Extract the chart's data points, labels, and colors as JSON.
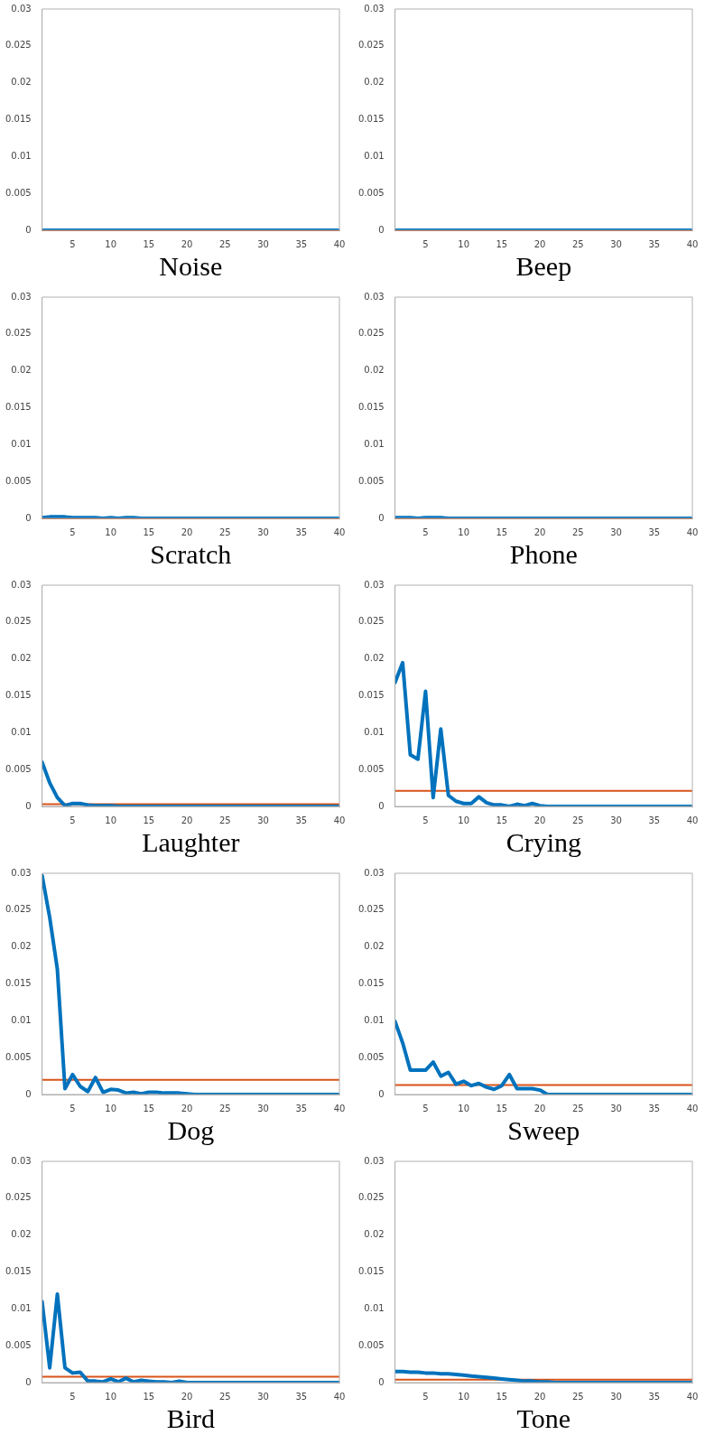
{
  "chart_data": [
    {
      "type": "line",
      "xlabel": "Noise",
      "x": [
        1,
        2,
        3,
        4,
        5,
        6,
        7,
        8,
        9,
        10,
        11,
        12,
        13,
        14,
        15,
        16,
        17,
        18,
        19,
        20,
        21,
        22,
        23,
        24,
        25,
        26,
        27,
        28,
        29,
        30,
        31,
        32,
        33,
        34,
        35,
        36,
        37,
        38,
        39,
        40
      ],
      "xlim": [
        1,
        40
      ],
      "xticks": [
        5,
        10,
        15,
        20,
        25,
        30,
        35,
        40
      ],
      "ylim": [
        0,
        0.03
      ],
      "yticks": [
        0,
        0.005,
        0.01,
        0.015,
        0.02,
        0.025,
        0.03
      ],
      "legend": false,
      "marker": "none",
      "line_style": "solid",
      "series": [
        {
          "color": "#0072bd",
          "values": [
            0,
            0,
            0,
            0,
            0,
            0,
            0,
            0,
            0,
            0,
            0,
            0,
            0,
            0,
            0,
            0,
            0,
            0,
            0,
            0,
            0,
            0,
            0,
            0,
            0,
            0,
            0,
            0,
            0,
            0,
            0,
            0,
            0,
            0,
            0,
            0,
            0,
            0,
            0,
            0
          ]
        }
      ],
      "ref_lines": [
        {
          "axis": "y",
          "value": 0,
          "color": "#d95319"
        }
      ]
    },
    {
      "type": "line",
      "xlabel": "Beep",
      "x": [
        1,
        2,
        3,
        4,
        5,
        6,
        7,
        8,
        9,
        10,
        11,
        12,
        13,
        14,
        15,
        16,
        17,
        18,
        19,
        20,
        21,
        22,
        23,
        24,
        25,
        26,
        27,
        28,
        29,
        30,
        31,
        32,
        33,
        34,
        35,
        36,
        37,
        38,
        39,
        40
      ],
      "xlim": [
        1,
        40
      ],
      "xticks": [
        5,
        10,
        15,
        20,
        25,
        30,
        35,
        40
      ],
      "ylim": [
        0,
        0.03
      ],
      "yticks": [
        0,
        0.005,
        0.01,
        0.015,
        0.02,
        0.025,
        0.03
      ],
      "legend": false,
      "marker": "none",
      "line_style": "solid",
      "series": [
        {
          "color": "#0072bd",
          "values": [
            0,
            0,
            0,
            0,
            0,
            0,
            0,
            0,
            0,
            0,
            0,
            0,
            0,
            0,
            0,
            0,
            0,
            0,
            0,
            0,
            0,
            0,
            0,
            0,
            0,
            0,
            0,
            0,
            0,
            0,
            0,
            0,
            0,
            0,
            0,
            0,
            0,
            0,
            0,
            0
          ]
        }
      ],
      "ref_lines": [
        {
          "axis": "y",
          "value": 0,
          "color": "#d95319"
        }
      ]
    },
    {
      "type": "line",
      "xlabel": "Scratch",
      "x": [
        1,
        2,
        3,
        4,
        5,
        6,
        7,
        8,
        9,
        10,
        11,
        12,
        13,
        14,
        15,
        16,
        17,
        18,
        19,
        20,
        21,
        22,
        23,
        24,
        25,
        26,
        27,
        28,
        29,
        30,
        31,
        32,
        33,
        34,
        35,
        36,
        37,
        38,
        39,
        40
      ],
      "xlim": [
        1,
        40
      ],
      "xticks": [
        5,
        10,
        15,
        20,
        25,
        30,
        35,
        40
      ],
      "ylim": [
        0,
        0.03
      ],
      "yticks": [
        0,
        0.005,
        0.01,
        0.015,
        0.02,
        0.025,
        0.03
      ],
      "legend": false,
      "marker": "none",
      "line_style": "solid",
      "series": [
        {
          "color": "#0072bd",
          "values": [
            0.0001,
            0.0002,
            0.0002,
            0.0002,
            0.0001,
            0.0001,
            0.0001,
            0.0001,
            0,
            0.0001,
            0,
            0.0001,
            0.0001,
            0,
            0,
            0,
            0,
            0,
            0,
            0,
            0,
            0,
            0,
            0,
            0,
            0,
            0,
            0,
            0,
            0,
            0,
            0,
            0,
            0,
            0,
            0,
            0,
            0,
            0,
            0
          ]
        }
      ],
      "ref_lines": [
        {
          "axis": "y",
          "value": 0,
          "color": "#d95319"
        }
      ]
    },
    {
      "type": "line",
      "xlabel": "Phone",
      "x": [
        1,
        2,
        3,
        4,
        5,
        6,
        7,
        8,
        9,
        10,
        11,
        12,
        13,
        14,
        15,
        16,
        17,
        18,
        19,
        20,
        21,
        22,
        23,
        24,
        25,
        26,
        27,
        28,
        29,
        30,
        31,
        32,
        33,
        34,
        35,
        36,
        37,
        38,
        39,
        40
      ],
      "xlim": [
        1,
        40
      ],
      "xticks": [
        5,
        10,
        15,
        20,
        25,
        30,
        35,
        40
      ],
      "ylim": [
        0,
        0.03
      ],
      "yticks": [
        0,
        0.005,
        0.01,
        0.015,
        0.02,
        0.025,
        0.03
      ],
      "legend": false,
      "marker": "none",
      "line_style": "solid",
      "series": [
        {
          "color": "#0072bd",
          "values": [
            0.0001,
            0.0001,
            0.0001,
            0,
            0.0001,
            0.0001,
            0.0001,
            0,
            0,
            0,
            0,
            0,
            0,
            0,
            0,
            0,
            0,
            0,
            0,
            0,
            0,
            0,
            0,
            0,
            0,
            0,
            0,
            0,
            0,
            0,
            0,
            0,
            0,
            0,
            0,
            0,
            0,
            0,
            0,
            0
          ]
        }
      ],
      "ref_lines": [
        {
          "axis": "y",
          "value": 0,
          "color": "#d95319"
        }
      ]
    },
    {
      "type": "line",
      "xlabel": "Laughter",
      "x": [
        1,
        2,
        3,
        4,
        5,
        6,
        7,
        8,
        9,
        10,
        11,
        12,
        13,
        14,
        15,
        16,
        17,
        18,
        19,
        20,
        21,
        22,
        23,
        24,
        25,
        26,
        27,
        28,
        29,
        30,
        31,
        32,
        33,
        34,
        35,
        36,
        37,
        38,
        39,
        40
      ],
      "xlim": [
        1,
        40
      ],
      "xticks": [
        5,
        10,
        15,
        20,
        25,
        30,
        35,
        40
      ],
      "ylim": [
        0,
        0.03
      ],
      "yticks": [
        0,
        0.005,
        0.01,
        0.015,
        0.02,
        0.025,
        0.03
      ],
      "legend": false,
      "marker": "none",
      "line_style": "solid",
      "series": [
        {
          "color": "#0072bd",
          "values": [
            0.006,
            0.0032,
            0.0012,
            0.0001,
            0.0004,
            0.0004,
            0.0002,
            0.0001,
            0.0001,
            0.0001,
            0,
            0,
            0,
            0,
            0,
            0,
            0,
            0,
            0,
            0,
            0,
            0,
            0,
            0,
            0,
            0,
            0,
            0,
            0,
            0,
            0,
            0,
            0,
            0,
            0,
            0,
            0,
            0,
            0,
            0
          ]
        }
      ],
      "ref_lines": [
        {
          "axis": "y",
          "value": 0.0003,
          "color": "#d95319"
        }
      ]
    },
    {
      "type": "line",
      "xlabel": "Crying",
      "x": [
        1,
        2,
        3,
        4,
        5,
        6,
        7,
        8,
        9,
        10,
        11,
        12,
        13,
        14,
        15,
        16,
        17,
        18,
        19,
        20,
        21,
        22,
        23,
        24,
        25,
        26,
        27,
        28,
        29,
        30,
        31,
        32,
        33,
        34,
        35,
        36,
        37,
        38,
        39,
        40
      ],
      "xlim": [
        1,
        40
      ],
      "xticks": [
        5,
        10,
        15,
        20,
        25,
        30,
        35,
        40
      ],
      "ylim": [
        0,
        0.03
      ],
      "yticks": [
        0,
        0.005,
        0.01,
        0.015,
        0.02,
        0.025,
        0.03
      ],
      "legend": false,
      "marker": "none",
      "line_style": "solid",
      "series": [
        {
          "color": "#0072bd",
          "values": [
            0.0168,
            0.0195,
            0.007,
            0.0064,
            0.0156,
            0.0012,
            0.0105,
            0.0015,
            0.0007,
            0.0004,
            0.0004,
            0.0013,
            0.0005,
            0.0002,
            0.0002,
            0,
            0.0003,
            0.0001,
            0.0004,
            0.0001,
            0,
            0,
            0,
            0,
            0,
            0,
            0,
            0,
            0,
            0,
            0,
            0,
            0,
            0,
            0,
            0,
            0,
            0,
            0,
            0
          ]
        }
      ],
      "ref_lines": [
        {
          "axis": "y",
          "value": 0.0021,
          "color": "#d95319"
        }
      ]
    },
    {
      "type": "line",
      "xlabel": "Dog",
      "x": [
        1,
        2,
        3,
        4,
        5,
        6,
        7,
        8,
        9,
        10,
        11,
        12,
        13,
        14,
        15,
        16,
        17,
        18,
        19,
        20,
        21,
        22,
        23,
        24,
        25,
        26,
        27,
        28,
        29,
        30,
        31,
        32,
        33,
        34,
        35,
        36,
        37,
        38,
        39,
        40
      ],
      "xlim": [
        1,
        40
      ],
      "xticks": [
        5,
        10,
        15,
        20,
        25,
        30,
        35,
        40
      ],
      "ylim": [
        0,
        0.03
      ],
      "yticks": [
        0,
        0.005,
        0.01,
        0.015,
        0.02,
        0.025,
        0.03
      ],
      "legend": false,
      "marker": "none",
      "line_style": "solid",
      "series": [
        {
          "color": "#0072bd",
          "values": [
            0.0297,
            0.024,
            0.017,
            0.0008,
            0.0027,
            0.0011,
            0.0004,
            0.0023,
            0.0003,
            0.0007,
            0.0006,
            0.0002,
            0.0003,
            0.0001,
            0.0003,
            0.0003,
            0.0002,
            0.0002,
            0.0002,
            0.0001,
            0,
            0,
            0,
            0,
            0,
            0,
            0,
            0,
            0,
            0,
            0,
            0,
            0,
            0,
            0,
            0,
            0,
            0,
            0,
            0
          ]
        }
      ],
      "ref_lines": [
        {
          "axis": "y",
          "value": 0.002,
          "color": "#d95319"
        }
      ]
    },
    {
      "type": "line",
      "xlabel": "Sweep",
      "x": [
        1,
        2,
        3,
        4,
        5,
        6,
        7,
        8,
        9,
        10,
        11,
        12,
        13,
        14,
        15,
        16,
        17,
        18,
        19,
        20,
        21,
        22,
        23,
        24,
        25,
        26,
        27,
        28,
        29,
        30,
        31,
        32,
        33,
        34,
        35,
        36,
        37,
        38,
        39,
        40
      ],
      "xlim": [
        1,
        40
      ],
      "xticks": [
        5,
        10,
        15,
        20,
        25,
        30,
        35,
        40
      ],
      "ylim": [
        0,
        0.03
      ],
      "yticks": [
        0,
        0.005,
        0.01,
        0.015,
        0.02,
        0.025,
        0.03
      ],
      "legend": false,
      "marker": "none",
      "line_style": "solid",
      "series": [
        {
          "color": "#0072bd",
          "values": [
            0.0099,
            0.007,
            0.0033,
            0.0033,
            0.0033,
            0.0044,
            0.0025,
            0.003,
            0.0014,
            0.0018,
            0.0012,
            0.0015,
            0.001,
            0.0007,
            0.0012,
            0.0027,
            0.0008,
            0.0008,
            0.0008,
            0.0006,
            0,
            0,
            0,
            0,
            0,
            0,
            0,
            0,
            0,
            0,
            0,
            0,
            0,
            0,
            0,
            0,
            0,
            0,
            0,
            0
          ]
        }
      ],
      "ref_lines": [
        {
          "axis": "y",
          "value": 0.0013,
          "color": "#d95319"
        }
      ]
    },
    {
      "type": "line",
      "xlabel": "Bird",
      "x": [
        1,
        2,
        3,
        4,
        5,
        6,
        7,
        8,
        9,
        10,
        11,
        12,
        13,
        14,
        15,
        16,
        17,
        18,
        19,
        20,
        21,
        22,
        23,
        24,
        25,
        26,
        27,
        28,
        29,
        30,
        31,
        32,
        33,
        34,
        35,
        36,
        37,
        38,
        39,
        40
      ],
      "xlim": [
        1,
        40
      ],
      "xticks": [
        5,
        10,
        15,
        20,
        25,
        30,
        35,
        40
      ],
      "ylim": [
        0,
        0.03
      ],
      "yticks": [
        0,
        0.005,
        0.01,
        0.015,
        0.02,
        0.025,
        0.03
      ],
      "legend": false,
      "marker": "none",
      "line_style": "solid",
      "series": [
        {
          "color": "#0072bd",
          "values": [
            0.011,
            0.002,
            0.012,
            0.002,
            0.0013,
            0.0014,
            0.0002,
            0.0002,
            0.0001,
            0.0005,
            0.0001,
            0.0006,
            0.0001,
            0.0003,
            0.0002,
            0.0001,
            0.0001,
            0,
            0.0002,
            0,
            0,
            0,
            0,
            0,
            0,
            0,
            0,
            0,
            0,
            0,
            0,
            0,
            0,
            0,
            0,
            0,
            0,
            0,
            0,
            0
          ]
        }
      ],
      "ref_lines": [
        {
          "axis": "y",
          "value": 0.0008,
          "color": "#d95319"
        }
      ]
    },
    {
      "type": "line",
      "xlabel": "Tone",
      "x": [
        1,
        2,
        3,
        4,
        5,
        6,
        7,
        8,
        9,
        10,
        11,
        12,
        13,
        14,
        15,
        16,
        17,
        18,
        19,
        20,
        21,
        22,
        23,
        24,
        25,
        26,
        27,
        28,
        29,
        30,
        31,
        32,
        33,
        34,
        35,
        36,
        37,
        38,
        39,
        40
      ],
      "xlim": [
        1,
        40
      ],
      "xticks": [
        5,
        10,
        15,
        20,
        25,
        30,
        35,
        40
      ],
      "ylim": [
        0,
        0.03
      ],
      "yticks": [
        0,
        0.005,
        0.01,
        0.015,
        0.02,
        0.025,
        0.03
      ],
      "legend": false,
      "marker": "none",
      "line_style": "solid",
      "series": [
        {
          "color": "#0072bd",
          "values": [
            0.0015,
            0.0015,
            0.0014,
            0.0014,
            0.0013,
            0.0013,
            0.0012,
            0.0012,
            0.0011,
            0.001,
            0.0009,
            0.0008,
            0.0007,
            0.0006,
            0.0005,
            0.0004,
            0.0003,
            0.0002,
            0.0002,
            0.0001,
            0.0001,
            0,
            0,
            0,
            0,
            0,
            0,
            0,
            0,
            0,
            0,
            0,
            0,
            0,
            0,
            0,
            0,
            0,
            0,
            0
          ]
        }
      ],
      "ref_lines": [
        {
          "axis": "y",
          "value": 0.0004,
          "color": "#d95319"
        }
      ]
    }
  ]
}
